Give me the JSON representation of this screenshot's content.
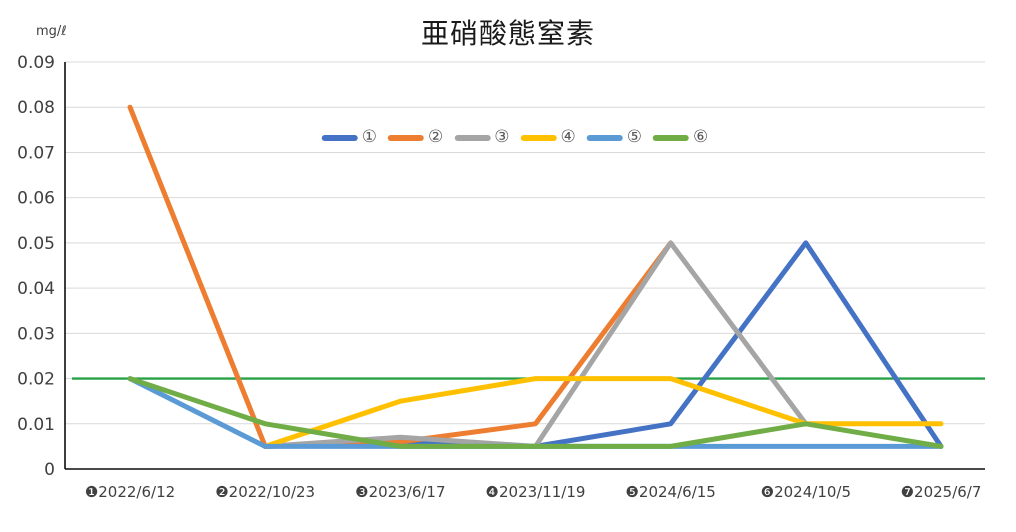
{
  "title": "亜硝酸態窒素",
  "y_axis_unit": "mg/ℓ",
  "chart_data": {
    "type": "line",
    "title": "亜硝酸態窒素",
    "ylabel": "mg/ℓ",
    "xlabel": "",
    "ylim": [
      0,
      0.09
    ],
    "grid": true,
    "legend_position": "top-center-inside",
    "y_tick_labels": [
      "0",
      "0.01",
      "0.02",
      "0.03",
      "0.04",
      "0.05",
      "0.06",
      "0.07",
      "0.08",
      "0.09"
    ],
    "categories": [
      "❶2022/6/12",
      "❷2022/10/23",
      "❸2023/6/17",
      "❹2023/11/19",
      "❺2024/6/15",
      "❻2024/10/5",
      "❼2025/6/7"
    ],
    "series": [
      {
        "name": "①",
        "color": "#4472C4",
        "values": [
          null,
          0.005,
          0.006,
          0.005,
          0.01,
          0.05,
          0.005
        ]
      },
      {
        "name": "②",
        "color": "#ED7D31",
        "values": [
          0.08,
          0.005,
          0.006,
          0.01,
          0.05,
          null,
          null
        ]
      },
      {
        "name": "③",
        "color": "#A5A5A5",
        "values": [
          null,
          0.005,
          0.007,
          0.005,
          0.05,
          0.01,
          null
        ]
      },
      {
        "name": "④",
        "color": "#FFC000",
        "values": [
          null,
          0.005,
          0.015,
          0.02,
          0.02,
          0.01,
          0.01
        ]
      },
      {
        "name": "⑤",
        "color": "#5B9BD5",
        "values": [
          0.02,
          0.005,
          0.005,
          0.005,
          0.005,
          0.005,
          0.005
        ]
      },
      {
        "name": "⑥",
        "color": "#70AD47",
        "values": [
          0.02,
          0.01,
          0.005,
          0.005,
          0.005,
          0.01,
          0.005
        ]
      }
    ],
    "reference_line": {
      "value": 0.02,
      "color": "#28A048"
    },
    "colors": {
      "gridline": "#D9D9D9",
      "axis": "#0d0d0d",
      "tick_text": "#404040",
      "legend_text": "#595959"
    }
  }
}
